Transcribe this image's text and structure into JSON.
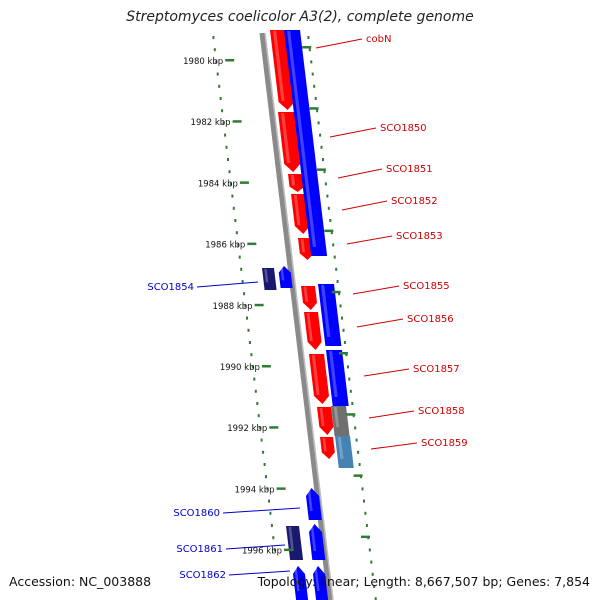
{
  "title": "Streptomyces coelicolor A3(2), complete genome",
  "accession_text": "Accession: NC_003888",
  "topology_text": "Topology: linear; Length: 8,667,507 bp; Genes: 7,854",
  "colors": {
    "forward_gene": "#ff0000",
    "reverse_gene": "#0000ff",
    "other_strand_gene": "#191970",
    "label_forward": "#cc0000",
    "label_reverse": "#0000cc",
    "ruler_tick": "#2e7d32",
    "pseudo_gray": "#707070",
    "steel_blue": "#4682b4"
  },
  "scale_labels": [
    {
      "text": "1980 kbp",
      "kbp": 1980
    },
    {
      "text": "1982 kbp",
      "kbp": 1982
    },
    {
      "text": "1984 kbp",
      "kbp": 1984
    },
    {
      "text": "1986 kbp",
      "kbp": 1986
    },
    {
      "text": "1988 kbp",
      "kbp": 1988
    },
    {
      "text": "1990 kbp",
      "kbp": 1990
    },
    {
      "text": "1992 kbp",
      "kbp": 1992
    },
    {
      "text": "1994 kbp",
      "kbp": 1994
    },
    {
      "text": "1996 kbp",
      "kbp": 1996
    }
  ],
  "gene_labels": [
    {
      "name": "cobN",
      "strand": "forward"
    },
    {
      "name": "SCO1850",
      "strand": "forward"
    },
    {
      "name": "SCO1851",
      "strand": "forward"
    },
    {
      "name": "SCO1852",
      "strand": "forward"
    },
    {
      "name": "SCO1853",
      "strand": "forward"
    },
    {
      "name": "SCO1854",
      "strand": "reverse"
    },
    {
      "name": "SCO1855",
      "strand": "forward"
    },
    {
      "name": "SCO1856",
      "strand": "forward"
    },
    {
      "name": "SCO1857",
      "strand": "forward"
    },
    {
      "name": "SCO1858",
      "strand": "forward"
    },
    {
      "name": "SCO1859",
      "strand": "forward"
    },
    {
      "name": "SCO1860",
      "strand": "reverse"
    },
    {
      "name": "SCO1861",
      "strand": "reverse"
    },
    {
      "name": "SCO1862",
      "strand": "reverse"
    }
  ]
}
